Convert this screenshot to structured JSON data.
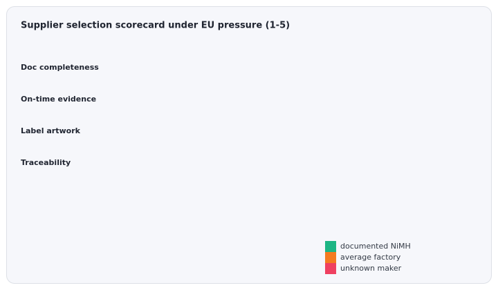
{
  "chart_data": {
    "type": "hbar",
    "title": "Supplier selection scorecard under EU pressure (1-5)",
    "categories": [
      "Doc completeness",
      "On-time evidence",
      "Label artwork",
      "Traceability"
    ],
    "series": [
      {
        "name": "documented NiMH",
        "color": "#1db584",
        "values": [
          0,
          0,
          0,
          0
        ]
      },
      {
        "name": "average factory",
        "color": "#f47b20",
        "values": [
          0,
          0,
          0,
          0
        ]
      },
      {
        "name": "unknown maker",
        "color": "#ef4060",
        "values": [
          0,
          0,
          0,
          0
        ]
      }
    ],
    "xlim": [
      0,
      5
    ],
    "legend": "bottom-right"
  }
}
